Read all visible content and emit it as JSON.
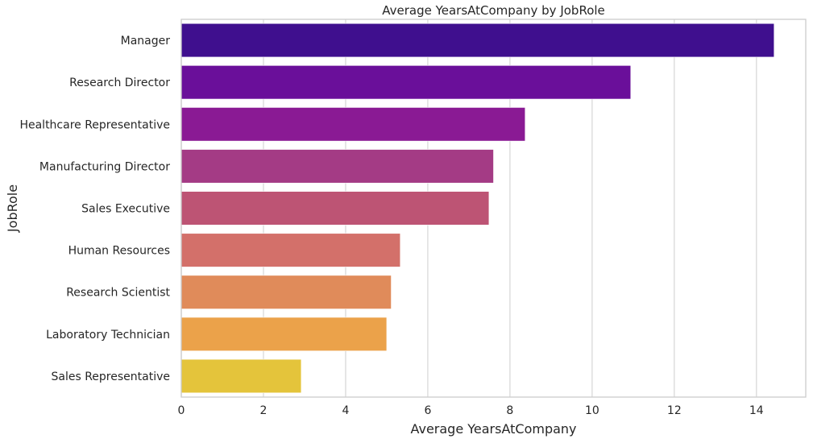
{
  "chart_data": {
    "type": "bar",
    "orientation": "horizontal",
    "title": "Average YearsAtCompany by JobRole",
    "xlabel": "Average YearsAtCompany",
    "ylabel": "JobRole",
    "xlim": [
      0,
      15.2
    ],
    "xticks": [
      0,
      2,
      4,
      6,
      8,
      10,
      12,
      14
    ],
    "grid": "x",
    "categories": [
      "Manager",
      "Research Director",
      "Healthcare Representative",
      "Manufacturing Director",
      "Sales Executive",
      "Human Resources",
      "Research Scientist",
      "Laboratory Technician",
      "Sales Representative"
    ],
    "values": [
      14.43,
      10.94,
      8.37,
      7.6,
      7.49,
      5.33,
      5.11,
      5.0,
      2.92
    ],
    "colors": [
      "#3f0f8e",
      "#6a0f9a",
      "#8a1a94",
      "#a43b85",
      "#bd5474",
      "#d3706a",
      "#e08b5a",
      "#eba24a",
      "#e4c43b"
    ],
    "palette": "plasma"
  }
}
